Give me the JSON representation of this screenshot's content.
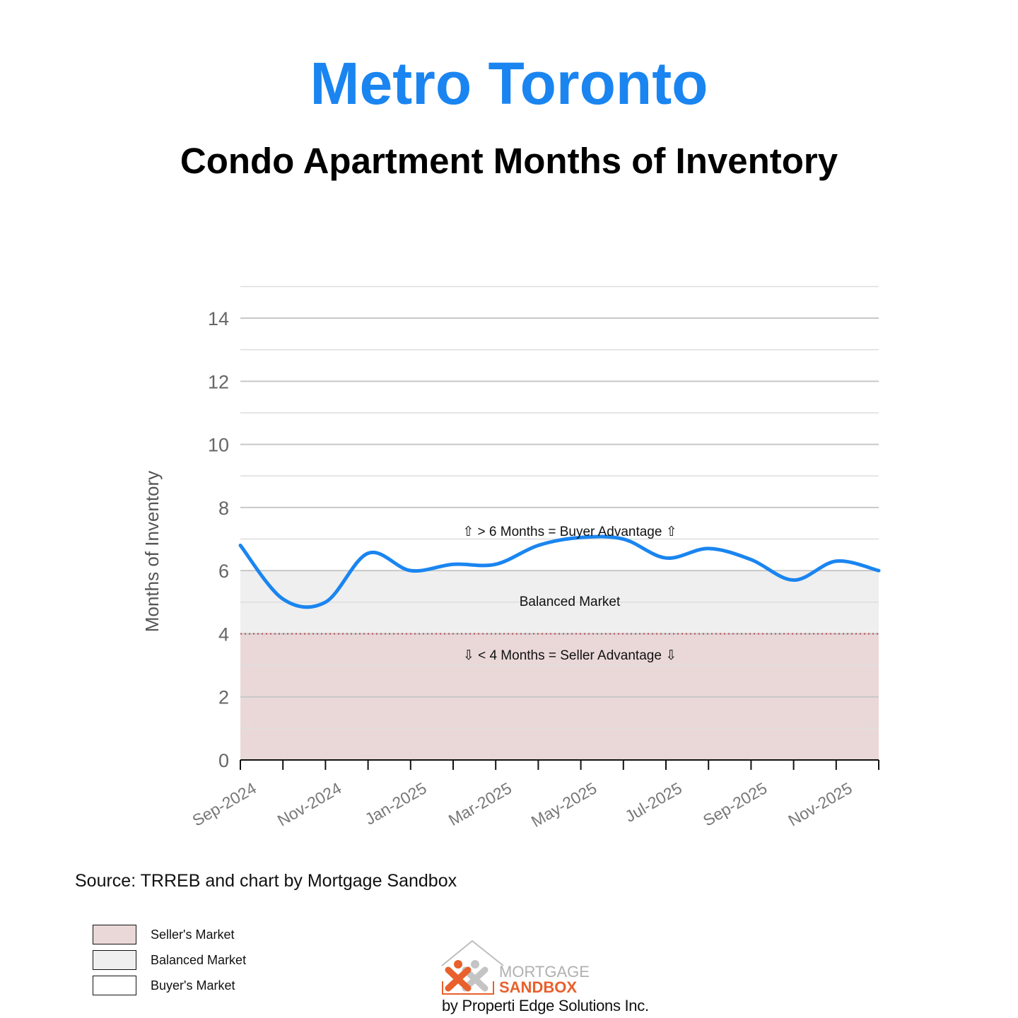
{
  "header": {
    "title": "Metro Toronto",
    "subtitle": "Condo Apartment Months of Inventory"
  },
  "colors": {
    "title": "#1a85f0",
    "line": "#1a85f0",
    "seller_zone": "#ead8d8",
    "balanced_zone": "#efefef",
    "buyer_zone": "#ffffff",
    "threshold_line": "#b5474f",
    "logo_orange": "#e8602c",
    "logo_gray": "#b9b9b9"
  },
  "annotations": {
    "buyer": "⇧ > 6 Months = Buyer Advantage ⇧",
    "balanced": "Balanced Market",
    "seller": "⇩ < 4 Months = Seller Advantage ⇩"
  },
  "source": "Source: TRREB and chart by Mortgage Sandbox",
  "legend": [
    {
      "label": "Seller's Market",
      "color": "#ead8d8"
    },
    {
      "label": "Balanced Market",
      "color": "#efefef"
    },
    {
      "label": "Buyer's Market",
      "color": "#ffffff"
    }
  ],
  "logo": {
    "line1": "MORTGAGE",
    "line2": "SANDBOX",
    "byline": "by Properti Edge Solutions Inc."
  },
  "chart_data": {
    "type": "line",
    "title": "Condo Apartment Months of Inventory",
    "subtitle": "Metro Toronto",
    "xlabel": "",
    "ylabel": "Months of Inventory",
    "ylim": [
      0,
      15
    ],
    "yticks": [
      0,
      2,
      4,
      6,
      8,
      10,
      12,
      14
    ],
    "xtick_labels": [
      "Sep-2024",
      "Nov-2024",
      "Jan-2025",
      "Mar-2025",
      "May-2025",
      "Jul-2025",
      "Sep-2025",
      "Nov-2025"
    ],
    "grid": true,
    "x": [
      "Sep-2024",
      "Oct-2024",
      "Nov-2024",
      "Dec-2024",
      "Jan-2025",
      "Feb-2025",
      "Mar-2025",
      "Apr-2025",
      "May-2025",
      "Jun-2025",
      "Jul-2025",
      "Aug-2025",
      "Sep-2025",
      "Oct-2025",
      "Nov-2025",
      "Dec-2025"
    ],
    "series": [
      {
        "name": "Months of Inventory",
        "values": [
          6.8,
          5.1,
          5.0,
          6.55,
          6.0,
          6.2,
          6.2,
          6.8,
          7.05,
          7.0,
          6.4,
          6.7,
          6.35,
          5.7,
          6.3,
          6.0
        ]
      }
    ],
    "bands": [
      {
        "name": "Seller's Market",
        "from": 0,
        "to": 4
      },
      {
        "name": "Balanced Market",
        "from": 4,
        "to": 6
      },
      {
        "name": "Buyer's Market",
        "from": 6,
        "to": 15
      }
    ],
    "legend_position": "bottom-left"
  }
}
